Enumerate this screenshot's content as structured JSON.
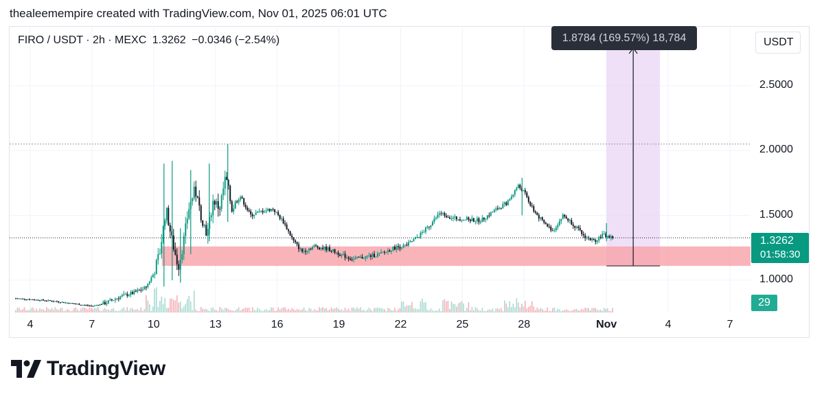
{
  "header": {
    "attribution": "thealeemempire created with TradingView.com, Nov 01, 2025 06:01 UTC"
  },
  "legend": {
    "symbol": "FIRO / USDT · 2h · MEXC",
    "last": "1.3262",
    "change": "−0.0346 (−2.54%)"
  },
  "currency_button": "USDT",
  "price_axis": {
    "ticks": [
      {
        "value": 2.5,
        "label": "2.5000"
      },
      {
        "value": 2.0,
        "label": "2.0000"
      },
      {
        "value": 1.5,
        "label": "1.5000"
      },
      {
        "value": 1.0,
        "label": "1.0000"
      }
    ],
    "current_price_label": "1.3262",
    "countdown_label": "01:58:30",
    "volume_label": "29"
  },
  "time_axis": {
    "ticks": [
      {
        "day": 4,
        "label": "4",
        "bold": false
      },
      {
        "day": 7,
        "label": "7",
        "bold": false
      },
      {
        "day": 10,
        "label": "10",
        "bold": false
      },
      {
        "day": 13,
        "label": "13",
        "bold": false
      },
      {
        "day": 16,
        "label": "16",
        "bold": false
      },
      {
        "day": 19,
        "label": "19",
        "bold": false
      },
      {
        "day": 22,
        "label": "22",
        "bold": false
      },
      {
        "day": 25,
        "label": "25",
        "bold": false
      },
      {
        "day": 28,
        "label": "28",
        "bold": false
      },
      {
        "day": 32,
        "label": "Nov",
        "bold": true
      },
      {
        "day": 35,
        "label": "4",
        "bold": false
      },
      {
        "day": 38,
        "label": "7",
        "bold": false
      }
    ]
  },
  "measure_tooltip": "1.8784 (169.57%) 18,784",
  "brand": {
    "name": "TradingView"
  },
  "colors": {
    "up": "#089981",
    "down": "#131722",
    "zone": "#f7a1a7",
    "measure_band": "#e9d5f5",
    "grid": "#f0f3fa",
    "dotted": "#9598a1"
  },
  "chart_data": {
    "type": "candlestick",
    "symbol": "FIRO/USDT",
    "interval": "2h",
    "exchange": "MEXC",
    "ylim": [
      0.75,
      2.95
    ],
    "xlim_days": [
      3.0,
      39.0
    ],
    "current_price": 1.3262,
    "resistance_level": 2.05,
    "demand_zone": {
      "from_day": 10.4,
      "to_day": 34.0,
      "low": 1.11,
      "high": 1.26
    },
    "measure": {
      "from_day": 32.0,
      "to_day": 34.6,
      "from_price": 1.11,
      "to_price": 2.99,
      "label": "1.8784 (169.57%) 18,784"
    },
    "price_path": [
      [
        3.2,
        0.86
      ],
      [
        5.0,
        0.84
      ],
      [
        7.0,
        0.8
      ],
      [
        7.6,
        0.82
      ],
      [
        8.5,
        0.88
      ],
      [
        9.0,
        0.9
      ],
      [
        9.6,
        0.94
      ],
      [
        10.0,
        1.05
      ],
      [
        10.3,
        1.22
      ],
      [
        10.6,
        1.55
      ],
      [
        10.9,
        1.3
      ],
      [
        11.2,
        1.1
      ],
      [
        11.4,
        1.25
      ],
      [
        11.7,
        1.55
      ],
      [
        12.0,
        1.7
      ],
      [
        12.3,
        1.5
      ],
      [
        12.6,
        1.35
      ],
      [
        12.9,
        1.62
      ],
      [
        13.2,
        1.55
      ],
      [
        13.5,
        1.8
      ],
      [
        13.8,
        1.55
      ],
      [
        14.2,
        1.65
      ],
      [
        14.7,
        1.5
      ],
      [
        15.2,
        1.53
      ],
      [
        15.8,
        1.55
      ],
      [
        16.3,
        1.45
      ],
      [
        16.8,
        1.3
      ],
      [
        17.2,
        1.22
      ],
      [
        17.8,
        1.26
      ],
      [
        18.5,
        1.24
      ],
      [
        19.2,
        1.19
      ],
      [
        19.7,
        1.16
      ],
      [
        20.3,
        1.18
      ],
      [
        21.0,
        1.2
      ],
      [
        21.7,
        1.25
      ],
      [
        22.3,
        1.27
      ],
      [
        22.8,
        1.33
      ],
      [
        23.4,
        1.42
      ],
      [
        23.9,
        1.52
      ],
      [
        24.5,
        1.48
      ],
      [
        25.2,
        1.47
      ],
      [
        25.9,
        1.46
      ],
      [
        26.5,
        1.53
      ],
      [
        27.2,
        1.6
      ],
      [
        27.7,
        1.73
      ],
      [
        28.0,
        1.68
      ],
      [
        28.4,
        1.55
      ],
      [
        28.9,
        1.45
      ],
      [
        29.4,
        1.38
      ],
      [
        29.9,
        1.5
      ],
      [
        30.4,
        1.43
      ],
      [
        30.9,
        1.34
      ],
      [
        31.4,
        1.3
      ],
      [
        31.8,
        1.35
      ],
      [
        32.2,
        1.33
      ]
    ],
    "spikes": [
      {
        "day": 10.5,
        "high": 1.9,
        "low": 0.95
      },
      {
        "day": 10.9,
        "high": 1.92,
        "low": 1.0
      },
      {
        "day": 11.3,
        "high": 1.4,
        "low": 0.98
      },
      {
        "day": 11.8,
        "high": 1.85,
        "low": 1.2
      },
      {
        "day": 12.7,
        "high": 1.9,
        "low": 1.3
      },
      {
        "day": 13.6,
        "high": 2.05,
        "low": 1.45
      },
      {
        "day": 27.9,
        "high": 1.79,
        "low": 1.5
      },
      {
        "day": 32.0,
        "high": 1.44,
        "low": 1.3
      }
    ]
  }
}
